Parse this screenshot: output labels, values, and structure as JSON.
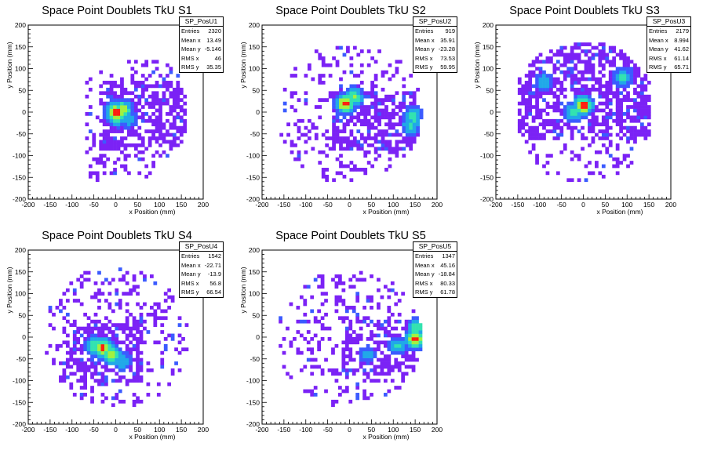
{
  "chart_data": [
    {
      "type": "heatmap",
      "title": "Space Point Doublets TkU S1",
      "xlabel": "x Position (mm)",
      "ylabel": "y Position (mm)",
      "xlim": [
        -200,
        200
      ],
      "ylim": [
        -200,
        200
      ],
      "ticks": [
        "-200",
        "-150",
        "-100",
        "-50",
        "0",
        "50",
        "100",
        "150",
        "200"
      ],
      "stats": {
        "name": "SP_PosU1",
        "rows": [
          {
            "label": "Entries",
            "value": "2320"
          },
          {
            "label": "Mean x",
            "value": "13.49"
          },
          {
            "label": "Mean y",
            "value": "-5.146"
          },
          {
            "label": "RMS x",
            "value": "46"
          },
          {
            "label": "RMS y",
            "value": "35.35"
          }
        ]
      },
      "hotspots": [
        {
          "x": 0,
          "y": 0,
          "level": 1.0
        },
        {
          "x": 15,
          "y": 5,
          "level": 0.85
        },
        {
          "x": 5,
          "y": -10,
          "level": 0.7
        },
        {
          "x": 30,
          "y": -15,
          "level": 0.4
        }
      ],
      "extent": {
        "x": [
          -70,
          165
        ],
        "y": [
          -160,
          115
        ],
        "dense_x": [
          -40,
          165
        ],
        "dense_y": [
          -80,
          70
        ]
      }
    },
    {
      "type": "heatmap",
      "title": "Space Point Doublets TkU S2",
      "xlabel": "x Position (mm)",
      "ylabel": "y Position (mm)",
      "xlim": [
        -200,
        200
      ],
      "ylim": [
        -200,
        200
      ],
      "ticks": [
        "-200",
        "-150",
        "-100",
        "-50",
        "0",
        "50",
        "100",
        "150",
        "200"
      ],
      "stats": {
        "name": "SP_PosU2",
        "rows": [
          {
            "label": "Entries",
            "value": "919"
          },
          {
            "label": "Mean x",
            "value": "35.91"
          },
          {
            "label": "Mean y",
            "value": "-23.28"
          },
          {
            "label": "RMS x",
            "value": "73.53"
          },
          {
            "label": "RMS y",
            "value": "59.95"
          }
        ]
      },
      "hotspots": [
        {
          "x": -10,
          "y": 20,
          "level": 1.0
        },
        {
          "x": 10,
          "y": 35,
          "level": 0.7
        },
        {
          "x": 145,
          "y": -10,
          "level": 0.6
        },
        {
          "x": 140,
          "y": -30,
          "level": 0.5
        }
      ],
      "extent": {
        "x": [
          -160,
          165
        ],
        "y": [
          -160,
          150
        ],
        "dense_x": [
          -40,
          165
        ],
        "dense_y": [
          -90,
          50
        ]
      }
    },
    {
      "type": "heatmap",
      "title": "Space Point Doublets TkU S3",
      "xlabel": "x Position (mm)",
      "ylabel": "y Position (mm)",
      "xlim": [
        -200,
        200
      ],
      "ylim": [
        -200,
        200
      ],
      "ticks": [
        "-200",
        "-150",
        "-100",
        "-50",
        "0",
        "50",
        "100",
        "150",
        "200"
      ],
      "stats": {
        "name": "SP_PosU3",
        "rows": [
          {
            "label": "Entries",
            "value": "2179"
          },
          {
            "label": "Mean x",
            "value": "8.994"
          },
          {
            "label": "Mean y",
            "value": "41.62"
          },
          {
            "label": "RMS x",
            "value": "61.14"
          },
          {
            "label": "RMS y",
            "value": "65.71"
          }
        ]
      },
      "hotspots": [
        {
          "x": 0,
          "y": 15,
          "level": 1.0
        },
        {
          "x": -20,
          "y": 0,
          "level": 0.6
        },
        {
          "x": 90,
          "y": 80,
          "level": 0.5
        },
        {
          "x": -90,
          "y": 70,
          "level": 0.45
        }
      ],
      "extent": {
        "x": [
          -150,
          150
        ],
        "y": [
          -160,
          160
        ],
        "dense_x": [
          -150,
          150
        ],
        "dense_y": [
          -60,
          160
        ]
      }
    },
    {
      "type": "heatmap",
      "title": "Space Point Doublets TkU S4",
      "xlabel": "x Position (mm)",
      "ylabel": "y Position (mm)",
      "xlim": [
        -200,
        200
      ],
      "ylim": [
        -200,
        200
      ],
      "ticks": [
        "-200",
        "-150",
        "-100",
        "-50",
        "0",
        "50",
        "100",
        "150",
        "200"
      ],
      "stats": {
        "name": "SP_PosU4",
        "rows": [
          {
            "label": "Entries",
            "value": "1542"
          },
          {
            "label": "Mean x",
            "value": "-22.71"
          },
          {
            "label": "Mean y",
            "value": "-13.9"
          },
          {
            "label": "RMS x",
            "value": "56.8"
          },
          {
            "label": "RMS y",
            "value": "66.54"
          }
        ]
      },
      "hotspots": [
        {
          "x": -30,
          "y": -25,
          "level": 1.0
        },
        {
          "x": -10,
          "y": -40,
          "level": 0.85
        },
        {
          "x": -50,
          "y": -20,
          "level": 0.6
        },
        {
          "x": 15,
          "y": -55,
          "level": 0.45
        }
      ],
      "extent": {
        "x": [
          -170,
          165
        ],
        "y": [
          -160,
          160
        ],
        "dense_x": [
          -120,
          60
        ],
        "dense_y": [
          -100,
          40
        ]
      }
    },
    {
      "type": "heatmap",
      "title": "Space Point Doublets TkU S5",
      "xlabel": "x Position (mm)",
      "ylabel": "y Position (mm)",
      "xlim": [
        -200,
        200
      ],
      "ylim": [
        -200,
        200
      ],
      "ticks": [
        "-200",
        "-150",
        "-100",
        "-50",
        "0",
        "50",
        "100",
        "150",
        "200"
      ],
      "stats": {
        "name": "SP_PosU5",
        "rows": [
          {
            "label": "Entries",
            "value": "1347"
          },
          {
            "label": "Mean x",
            "value": "45.16"
          },
          {
            "label": "Mean y",
            "value": "-18.84"
          },
          {
            "label": "RMS x",
            "value": "80.33"
          },
          {
            "label": "RMS y",
            "value": "61.78"
          }
        ]
      },
      "hotspots": [
        {
          "x": 150,
          "y": -5,
          "level": 1.0
        },
        {
          "x": 155,
          "y": 25,
          "level": 0.6
        },
        {
          "x": 110,
          "y": -20,
          "level": 0.5
        },
        {
          "x": 40,
          "y": -40,
          "level": 0.35
        }
      ],
      "extent": {
        "x": [
          -170,
          165
        ],
        "y": [
          -160,
          150
        ],
        "dense_x": [
          -20,
          165
        ],
        "dense_y": [
          -90,
          40
        ]
      }
    }
  ],
  "colors": {
    "low": "#7b22f5",
    "low_mid": "#3b5bff",
    "mid": "#21a8e8",
    "high_mid": "#33e2b0",
    "high": "#a3f040",
    "peak": "#ff2010"
  }
}
